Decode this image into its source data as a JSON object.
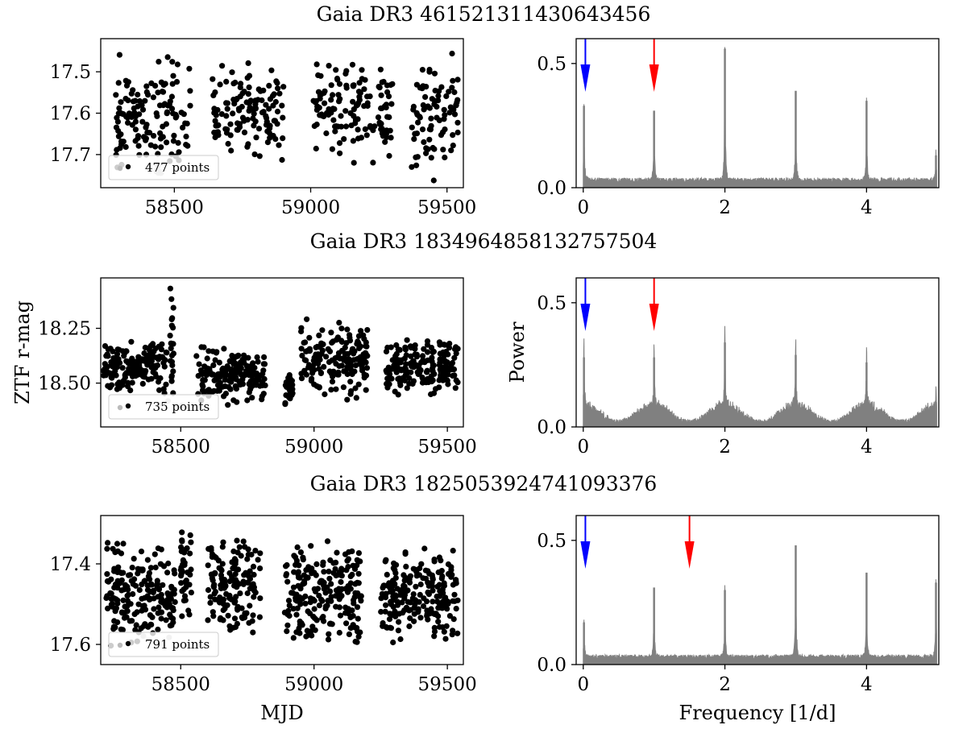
{
  "chart_data": [
    {
      "type": "scatter",
      "title": "Gaia DR3 4615213114306434 56",
      "xlabel": "",
      "ylabel": "",
      "xlim": [
        58230,
        59560
      ],
      "ylim": [
        17.78,
        17.42
      ],
      "y_inverted": true,
      "xticks": [
        58500,
        59000,
        59500
      ],
      "yticks": [
        17.5,
        17.6,
        17.7
      ],
      "ytick_labels": [
        "17.5",
        "17.6",
        "17.7"
      ],
      "legend": {
        "label": "477 points",
        "placement": "lower-left"
      },
      "series": [
        {
          "n": 477,
          "seed": 11,
          "color": "#000000",
          "segments": [
            [
              58280,
              58560,
              17.45,
              17.75
            ],
            [
              58640,
              58900,
              17.45,
              17.72
            ],
            [
              59010,
              59300,
              17.46,
              17.73
            ],
            [
              59370,
              59540,
              17.45,
              17.77
            ]
          ]
        },
        {
          "n": 6,
          "seed": 12,
          "color": "#bbbbbb",
          "segments": [
            [
              58430,
              58470,
              17.72,
              17.76
            ]
          ]
        }
      ]
    },
    {
      "type": "line",
      "title": "",
      "xlabel": "",
      "ylabel": "",
      "xlim": [
        -0.1,
        5.02
      ],
      "ylim": [
        0,
        0.6
      ],
      "xticks": [
        0,
        2,
        4
      ],
      "yticks": [
        0.0,
        0.5
      ],
      "ytick_labels": [
        "0.0",
        "0.5"
      ],
      "color": "#808080",
      "baseline": 0.02,
      "hump": 0.0,
      "peaks": [
        {
          "f": 0.01,
          "p": 0.33
        },
        {
          "f": 1.0,
          "p": 0.31
        },
        {
          "f": 2.0,
          "p": 0.56
        },
        {
          "f": 3.0,
          "p": 0.39
        },
        {
          "f": 4.0,
          "p": 0.35
        },
        {
          "f": 4.98,
          "p": 0.13
        }
      ],
      "arrows": [
        {
          "f": 0.03,
          "color": "#0000ff"
        },
        {
          "f": 1.0,
          "color": "#ff0000"
        }
      ]
    },
    {
      "type": "scatter",
      "title": "Gaia DR3 1834964858132757504",
      "xlabel": "",
      "ylabel": "ZTF r-mag",
      "xlim": [
        58200,
        59560
      ],
      "ylim": [
        18.7,
        18.02
      ],
      "y_inverted": true,
      "xticks": [
        58500,
        59000,
        59500
      ],
      "yticks": [
        18.25,
        18.5
      ],
      "ytick_labels": [
        "18.25",
        "18.50"
      ],
      "legend": {
        "label": "735 points",
        "placement": "lower-left"
      },
      "series": [
        {
          "n": 735,
          "seed": 21,
          "color": "#000000",
          "segments": [
            [
              58210,
              58450,
              18.3,
              18.55
            ],
            [
              58460,
              58475,
              18.02,
              18.68
            ],
            [
              58550,
              58820,
              18.33,
              18.6
            ],
            [
              58890,
              58920,
              18.45,
              18.6
            ],
            [
              58950,
              59200,
              18.2,
              18.58
            ],
            [
              59270,
              59540,
              18.3,
              18.56
            ]
          ]
        },
        {
          "n": 3,
          "seed": 22,
          "color": "#bbbbbb",
          "segments": [
            [
              58380,
              58530,
              18.58,
              18.61
            ]
          ]
        }
      ]
    },
    {
      "type": "line",
      "title": "",
      "xlabel": "",
      "ylabel": "Power",
      "xlim": [
        -0.1,
        5.02
      ],
      "ylim": [
        0,
        0.6
      ],
      "xticks": [
        0,
        2,
        4
      ],
      "yticks": [
        0.0,
        0.5
      ],
      "ytick_labels": [
        "0.0",
        "0.5"
      ],
      "color": "#808080",
      "baseline": 0.01,
      "hump": 0.07,
      "peaks": [
        {
          "f": 0.01,
          "p": 0.28
        },
        {
          "f": 1.0,
          "p": 0.28
        },
        {
          "f": 2.0,
          "p": 0.34
        },
        {
          "f": 3.0,
          "p": 0.29
        },
        {
          "f": 4.0,
          "p": 0.26
        },
        {
          "f": 4.98,
          "p": 0.1
        }
      ],
      "arrows": [
        {
          "f": 0.03,
          "color": "#0000ff"
        },
        {
          "f": 1.0,
          "color": "#ff0000"
        }
      ]
    },
    {
      "type": "scatter",
      "title": "Gaia DR3 1825053924741093376",
      "xlabel": "MJD",
      "ylabel": "",
      "xlim": [
        58200,
        59560
      ],
      "ylim": [
        17.65,
        17.28
      ],
      "y_inverted": true,
      "xticks": [
        58500,
        59000,
        59500
      ],
      "yticks": [
        17.4,
        17.6
      ],
      "ytick_labels": [
        "17.4",
        "17.6"
      ],
      "legend": {
        "label": "791 points",
        "placement": "lower-left"
      },
      "series": [
        {
          "n": 791,
          "seed": 31,
          "color": "#000000",
          "segments": [
            [
              58220,
              58480,
              17.33,
              17.62
            ],
            [
              58500,
              58540,
              17.3,
              17.55
            ],
            [
              58600,
              58800,
              17.33,
              17.58
            ],
            [
              58890,
              59180,
              17.33,
              17.62
            ],
            [
              59250,
              59540,
              17.35,
              17.6
            ]
          ]
        },
        {
          "n": 2,
          "seed": 32,
          "color": "#bbbbbb",
          "segments": [
            [
              58320,
              58480,
              17.57,
              17.59
            ]
          ]
        }
      ]
    },
    {
      "type": "line",
      "title": "",
      "xlabel": "Frequency [1/d]",
      "ylabel": "",
      "xlim": [
        -0.1,
        5.02
      ],
      "ylim": [
        0,
        0.6
      ],
      "xticks": [
        0,
        2,
        4
      ],
      "yticks": [
        0.0,
        0.5
      ],
      "ytick_labels": [
        "0.0",
        "0.5"
      ],
      "color": "#808080",
      "baseline": 0.02,
      "hump": 0.0,
      "peaks": [
        {
          "f": 0.01,
          "p": 0.17
        },
        {
          "f": 1.0,
          "p": 0.31
        },
        {
          "f": 2.0,
          "p": 0.3
        },
        {
          "f": 3.0,
          "p": 0.48
        },
        {
          "f": 4.0,
          "p": 0.37
        },
        {
          "f": 4.98,
          "p": 0.33
        }
      ],
      "arrows": [
        {
          "f": 0.03,
          "color": "#0000ff"
        },
        {
          "f": 1.5,
          "color": "#ff0000"
        }
      ]
    }
  ]
}
